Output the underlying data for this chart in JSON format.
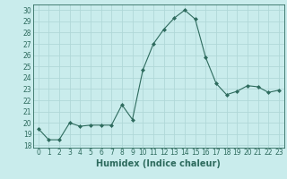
{
  "x": [
    0,
    1,
    2,
    3,
    4,
    5,
    6,
    7,
    8,
    9,
    10,
    11,
    12,
    13,
    14,
    15,
    16,
    17,
    18,
    19,
    20,
    21,
    22,
    23
  ],
  "y": [
    19.5,
    18.5,
    18.5,
    20.0,
    19.7,
    19.8,
    19.8,
    19.8,
    21.6,
    20.3,
    24.7,
    27.0,
    28.3,
    29.3,
    30.0,
    29.2,
    25.8,
    23.5,
    22.5,
    22.8,
    23.3,
    23.2,
    22.7,
    22.9
  ],
  "line_color": "#2e6b5e",
  "marker": "D",
  "marker_size": 2.0,
  "bg_color": "#c9ecec",
  "grid_color": "#b0d8d8",
  "xlabel": "Humidex (Indice chaleur)",
  "ylabel_ticks": [
    18,
    19,
    20,
    21,
    22,
    23,
    24,
    25,
    26,
    27,
    28,
    29,
    30
  ],
  "ylim": [
    17.8,
    30.5
  ],
  "xlim": [
    -0.5,
    23.5
  ],
  "xtick_labels": [
    "0",
    "1",
    "2",
    "3",
    "4",
    "5",
    "6",
    "7",
    "8",
    "9",
    "10",
    "11",
    "12",
    "13",
    "14",
    "15",
    "16",
    "17",
    "18",
    "19",
    "20",
    "21",
    "22",
    "23"
  ],
  "tick_fontsize": 5.5,
  "xlabel_fontsize": 7.0
}
